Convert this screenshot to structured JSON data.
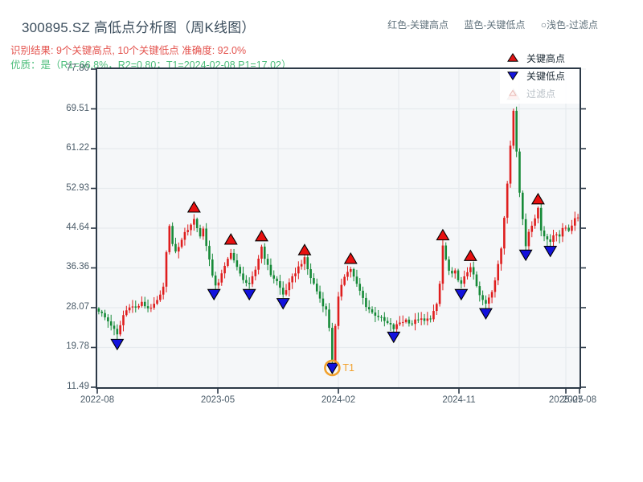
{
  "header": {
    "title": "300895.SZ 高低点分析图（周K线图）",
    "inline_legend": {
      "high": "红色-关键高点",
      "low": "蓝色-关键低点",
      "filtered": "○浅色-过滤点"
    },
    "result_line": "识别结果: 9个关键高点, 10个关键低点  准确度: 92.0%",
    "quality_line": "优质：是（R1=66.8%，R2=0.80；T1=2024-02-08 P1=17.02）"
  },
  "legend_box": {
    "items": [
      {
        "label": "关键高点",
        "marker": "triangle-up-filled",
        "color": "#e01414",
        "text_color": "#1d2b36"
      },
      {
        "label": "关键低点",
        "marker": "triangle-down-filled",
        "color": "#1414dd",
        "text_color": "#1d2b36"
      },
      {
        "label": "过滤点",
        "marker": "triangle-up-open",
        "color": "#e9b8b4",
        "text_color": "#b9c0c7"
      }
    ]
  },
  "chart_data": {
    "type": "candlestick",
    "timeframe": "weekly",
    "symbol": "300895.SZ",
    "x_range": [
      "2022-08",
      "2025-08"
    ],
    "x_ticks": [
      {
        "label": "2022-08",
        "pos": 0.0
      },
      {
        "label": "2023-05",
        "pos": 0.25
      },
      {
        "label": "2024-02",
        "pos": 0.5
      },
      {
        "label": "2024-11",
        "pos": 0.75
      },
      {
        "label": "2025-07",
        "pos": 0.9717
      },
      {
        "label": "2025-08",
        "pos": 1.0
      }
    ],
    "y_tick_labels": [
      "77.80",
      "69.51",
      "61.22",
      "52.93",
      "44.64",
      "36.36",
      "28.07",
      "19.78",
      "11.49"
    ],
    "y_min": 11.49,
    "y_max": 77.8,
    "weeks_total": 157,
    "close_anchors": [
      [
        0,
        27.5
      ],
      [
        2,
        26.0
      ],
      [
        4,
        24.5
      ],
      [
        6,
        22.3
      ],
      [
        8,
        26.5
      ],
      [
        10,
        28.5
      ],
      [
        12,
        28.0
      ],
      [
        14,
        29.0
      ],
      [
        16,
        28.0
      ],
      [
        18,
        28.5
      ],
      [
        20,
        30.5
      ],
      [
        21.5,
        33.0
      ],
      [
        22.5,
        47.0
      ],
      [
        24,
        41.0
      ],
      [
        25.5,
        39.5
      ],
      [
        27,
        42.5
      ],
      [
        29,
        44.5
      ],
      [
        31,
        46.5
      ],
      [
        33,
        43.0
      ],
      [
        34,
        44.5
      ],
      [
        36,
        38.0
      ],
      [
        37.5,
        32.6
      ],
      [
        39,
        33.5
      ],
      [
        41,
        36.5
      ],
      [
        43,
        39.8
      ],
      [
        44.5,
        37.0
      ],
      [
        46,
        35.0
      ],
      [
        48,
        33.3
      ],
      [
        49,
        32.6
      ],
      [
        51,
        36.0
      ],
      [
        53,
        40.8
      ],
      [
        54.5,
        37.5
      ],
      [
        56,
        35.0
      ],
      [
        58,
        33.5
      ],
      [
        60,
        30.8
      ],
      [
        62,
        33.0
      ],
      [
        64,
        35.5
      ],
      [
        66,
        37.5
      ],
      [
        67,
        38.2
      ],
      [
        68.5,
        35.0
      ],
      [
        70,
        33.0
      ],
      [
        72,
        30.0
      ],
      [
        74,
        27.5
      ],
      [
        75,
        24.0
      ],
      [
        76,
        17.2
      ],
      [
        77,
        24.0
      ],
      [
        78,
        30.0
      ],
      [
        79.5,
        34.5
      ],
      [
        81,
        35.5
      ],
      [
        82,
        36.2
      ],
      [
        83.5,
        33.5
      ],
      [
        85,
        31.5
      ],
      [
        87,
        28.5
      ],
      [
        89,
        27.0
      ],
      [
        91,
        26.3
      ],
      [
        93,
        25.2
      ],
      [
        95,
        24.3
      ],
      [
        96,
        23.7
      ],
      [
        98,
        25.0
      ],
      [
        100,
        25.5
      ],
      [
        102,
        24.8
      ],
      [
        104,
        25.8
      ],
      [
        106,
        25.2
      ],
      [
        108,
        26.0
      ],
      [
        110,
        28.5
      ],
      [
        111,
        33.0
      ],
      [
        112,
        41.0
      ],
      [
        113,
        38.0
      ],
      [
        114.5,
        34.5
      ],
      [
        116,
        35.5
      ],
      [
        118,
        32.8
      ],
      [
        119.5,
        35.0
      ],
      [
        121,
        36.8
      ],
      [
        122.5,
        33.5
      ],
      [
        124,
        30.5
      ],
      [
        126,
        28.7
      ],
      [
        128,
        31.5
      ],
      [
        129,
        34.0
      ],
      [
        130,
        37.5
      ],
      [
        131,
        40.5
      ],
      [
        132,
        46.5
      ],
      [
        133,
        54.0
      ],
      [
        134,
        62.0
      ],
      [
        135,
        69.5
      ],
      [
        136,
        61.0
      ],
      [
        137,
        52.0
      ],
      [
        138,
        46.5
      ],
      [
        139,
        41.0
      ],
      [
        140,
        44.0
      ],
      [
        141,
        45.5
      ],
      [
        142,
        47.0
      ],
      [
        143,
        48.5
      ],
      [
        144,
        44.5
      ],
      [
        145.5,
        42.5
      ],
      [
        147,
        41.8
      ],
      [
        148.5,
        44.0
      ],
      [
        150,
        43.0
      ],
      [
        151.5,
        45.0
      ],
      [
        153,
        44.3
      ],
      [
        154.5,
        46.0
      ],
      [
        156,
        47.0
      ]
    ],
    "key_highs": [
      [
        31,
        47.3
      ],
      [
        43,
        40.6
      ],
      [
        53,
        41.3
      ],
      [
        67,
        38.4
      ],
      [
        82,
        36.6
      ],
      [
        112,
        41.5
      ],
      [
        121,
        37.2
      ],
      [
        135,
        70.8
      ],
      [
        143,
        49.0
      ]
    ],
    "key_lows": [
      [
        6,
        22.0
      ],
      [
        37.5,
        32.4
      ],
      [
        49,
        32.4
      ],
      [
        60,
        30.5
      ],
      [
        76,
        17.02
      ],
      [
        96,
        23.5
      ],
      [
        118,
        32.4
      ],
      [
        126,
        28.4
      ],
      [
        139,
        40.6
      ],
      [
        147,
        41.4
      ]
    ],
    "t1": {
      "week": 76,
      "price": 17.02,
      "label": "T1",
      "date": "2024-02-08"
    },
    "colors": {
      "up_candle": "#df1e1e",
      "down_candle": "#168a38",
      "high_marker": "#e81010",
      "low_marker": "#1212dd",
      "marker_edge": "#000000",
      "t1_ring": "#f2a22e",
      "grid": "#e6eaee",
      "plot_bg": "#f5f7f9",
      "spine": "#2c3947"
    }
  }
}
